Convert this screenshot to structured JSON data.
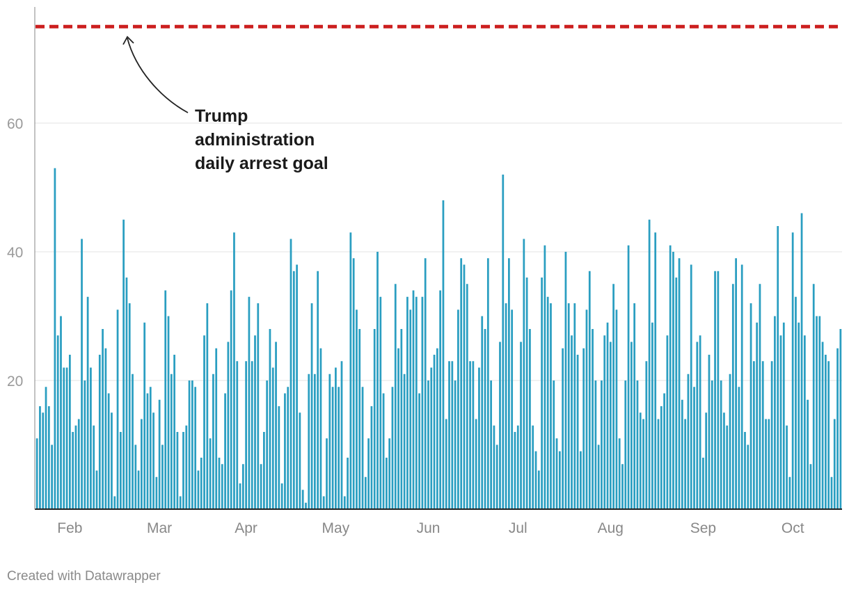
{
  "chart_data": {
    "type": "bar",
    "ylim": [
      0,
      75
    ],
    "y_ticks": [
      20,
      40,
      60
    ],
    "grid": true,
    "bar_color": "#2a9ec1",
    "goal_line": {
      "value": 75,
      "color": "#cc1f1f",
      "style": "dashed"
    },
    "annotation": {
      "lines": [
        "Trump",
        "administration",
        "daily arrest goal"
      ]
    },
    "month_labels": [
      "Feb",
      "Mar",
      "Apr",
      "May",
      "Jun",
      "Jul",
      "Aug",
      "Sep",
      "Oct"
    ],
    "month_label_day_index": [
      11,
      41,
      70,
      100,
      131,
      161,
      192,
      223,
      253
    ],
    "values": [
      11,
      16,
      15,
      19,
      16,
      10,
      53,
      27,
      30,
      22,
      22,
      24,
      12,
      13,
      14,
      42,
      20,
      33,
      22,
      13,
      6,
      24,
      28,
      25,
      18,
      15,
      2,
      31,
      12,
      45,
      36,
      32,
      21,
      10,
      6,
      14,
      29,
      18,
      19,
      15,
      5,
      17,
      10,
      34,
      30,
      21,
      24,
      12,
      2,
      12,
      13,
      20,
      20,
      19,
      6,
      8,
      27,
      32,
      11,
      21,
      25,
      8,
      7,
      18,
      26,
      34,
      43,
      23,
      4,
      7,
      23,
      33,
      23,
      27,
      32,
      7,
      12,
      20,
      28,
      22,
      26,
      16,
      4,
      18,
      19,
      42,
      37,
      38,
      15,
      3,
      1,
      21,
      32,
      21,
      37,
      25,
      2,
      11,
      21,
      19,
      22,
      19,
      23,
      2,
      8,
      43,
      39,
      31,
      28,
      19,
      5,
      11,
      16,
      28,
      40,
      33,
      18,
      8,
      11,
      19,
      35,
      25,
      28,
      21,
      33,
      31,
      34,
      33,
      18,
      33,
      39,
      20,
      22,
      24,
      25,
      34,
      48,
      14,
      23,
      23,
      20,
      31,
      39,
      38,
      35,
      23,
      23,
      14,
      22,
      30,
      28,
      39,
      20,
      13,
      10,
      26,
      52,
      32,
      39,
      31,
      12,
      13,
      26,
      42,
      36,
      28,
      13,
      9,
      6,
      36,
      41,
      33,
      32,
      20,
      11,
      9,
      25,
      40,
      32,
      27,
      32,
      24,
      9,
      25,
      31,
      37,
      28,
      20,
      10,
      20,
      27,
      29,
      26,
      35,
      31,
      11,
      7,
      20,
      41,
      26,
      32,
      20,
      15,
      14,
      23,
      45,
      29,
      43,
      14,
      16,
      18,
      27,
      41,
      40,
      36,
      39,
      17,
      14,
      21,
      38,
      19,
      26,
      27,
      8,
      15,
      24,
      20,
      37,
      37,
      20,
      15,
      13,
      21,
      35,
      39,
      19,
      38,
      12,
      10,
      32,
      23,
      29,
      35,
      23,
      14,
      14,
      23,
      30,
      44,
      27,
      29,
      13,
      5,
      43,
      33,
      29,
      46,
      27,
      17,
      7,
      35,
      30,
      30,
      26,
      24,
      23,
      5,
      14,
      25,
      28
    ]
  },
  "footer": {
    "credit": "Created with Datawrapper"
  }
}
